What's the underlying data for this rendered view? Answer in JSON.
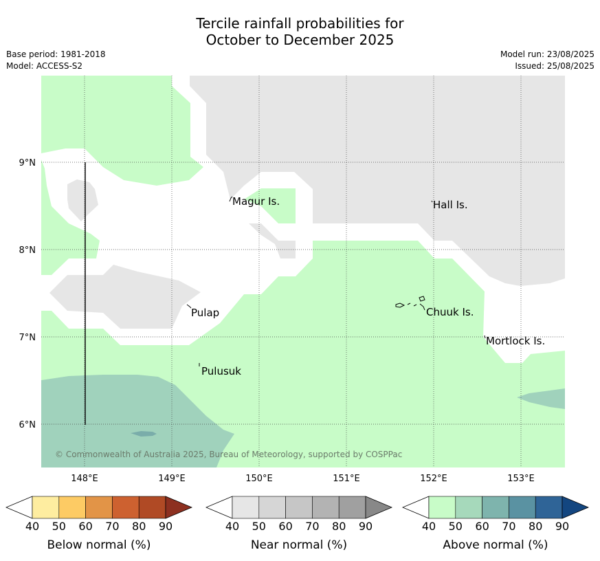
{
  "header": {
    "title_line1": "Tercile rainfall probabilities for",
    "title_line2": "October to December 2025",
    "base_period": "Base period: 1981-2018",
    "model": "Model: ACCESS-S2",
    "model_run": "Model run: 23/08/2025",
    "issued": "Issued: 25/08/2025"
  },
  "map": {
    "lon_labels": [
      "148°E",
      "149°E",
      "150°E",
      "151°E",
      "152°E",
      "153°E"
    ],
    "lat_labels": [
      "9°N",
      "8°N",
      "7°N",
      "6°N"
    ],
    "places": [
      "Magur Is.",
      "Hall Is.",
      "Pulap",
      "Chuuk Is.",
      "Mortlock Is.",
      "Pulusuk"
    ],
    "copyright": "© Commonwealth of Australia 2025, Bureau of Meteorology, supported by COSPPac"
  },
  "colorbars": [
    {
      "label": "Below normal (%)",
      "ticks": [
        "40",
        "50",
        "60",
        "70",
        "80",
        "90"
      ],
      "colors": [
        "#ffffff",
        "#feeda0",
        "#fdcb64",
        "#e29447",
        "#cd6130",
        "#b04a25",
        "#8d3020"
      ]
    },
    {
      "label": "Near normal (%)",
      "ticks": [
        "40",
        "50",
        "60",
        "70",
        "80",
        "90"
      ],
      "colors": [
        "#ffffff",
        "#e6e6e6",
        "#d6d6d6",
        "#c6c6c6",
        "#b3b3b3",
        "#a0a0a0",
        "#888888"
      ]
    },
    {
      "label": "Above normal (%)",
      "ticks": [
        "40",
        "50",
        "60",
        "70",
        "80",
        "90"
      ],
      "colors": [
        "#ffffff",
        "#c8fcc8",
        "#a6d9bb",
        "#7eb4ad",
        "#5a92a2",
        "#2f6497",
        "#134680"
      ]
    }
  ]
}
